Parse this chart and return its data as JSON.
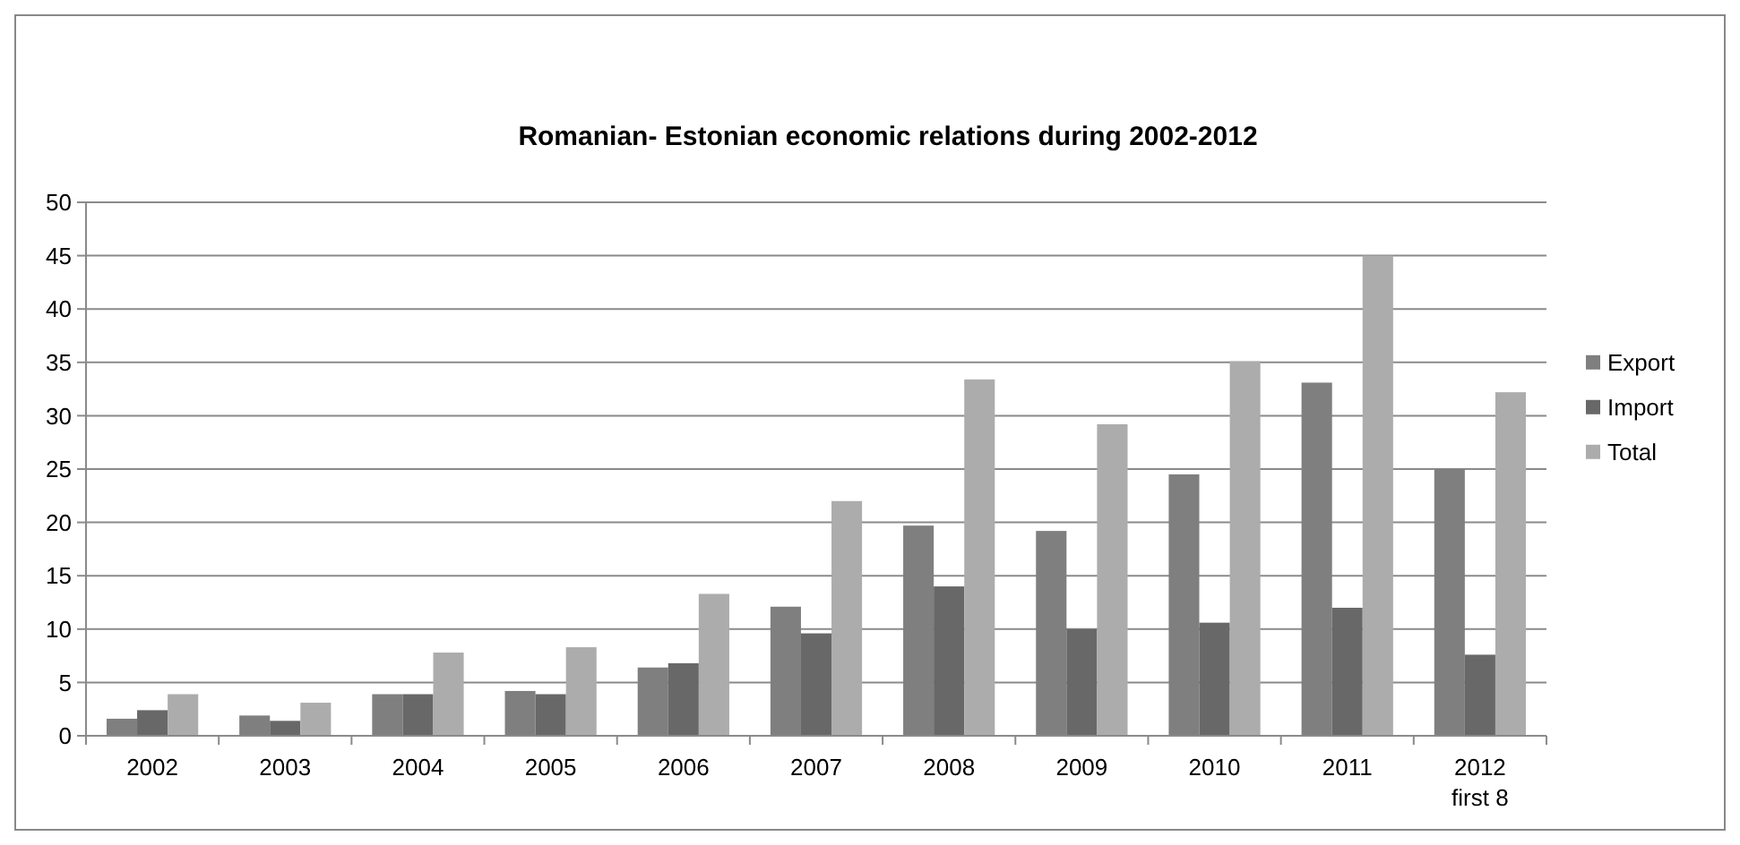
{
  "chart_data": {
    "type": "bar",
    "title": "Romanian- Estonian  economic relations during 2002-2012",
    "categories": [
      "2002",
      "2003",
      "2004",
      "2005",
      "2006",
      "2007",
      "2008",
      "2009",
      "2010",
      "2011",
      "2012\nfirst 8"
    ],
    "series": [
      {
        "name": "Export",
        "color": "#7f7f7f",
        "values": [
          1.6,
          1.9,
          3.9,
          4.2,
          6.4,
          12.1,
          19.7,
          19.2,
          24.5,
          33.1,
          25.0
        ]
      },
      {
        "name": "Import",
        "color": "#686868",
        "values": [
          2.4,
          1.4,
          3.9,
          3.9,
          6.8,
          9.6,
          14.0,
          10.0,
          10.6,
          12.0,
          7.6
        ]
      },
      {
        "name": "Total",
        "color": "#acacac",
        "values": [
          3.9,
          3.1,
          7.8,
          8.3,
          13.3,
          22.0,
          33.4,
          29.2,
          35.1,
          45.0,
          32.2
        ]
      }
    ],
    "ylim": [
      0,
      50
    ],
    "yticks": [
      0,
      5,
      10,
      15,
      20,
      25,
      30,
      35,
      40,
      45,
      50
    ],
    "grid": "y",
    "legend": "right"
  }
}
